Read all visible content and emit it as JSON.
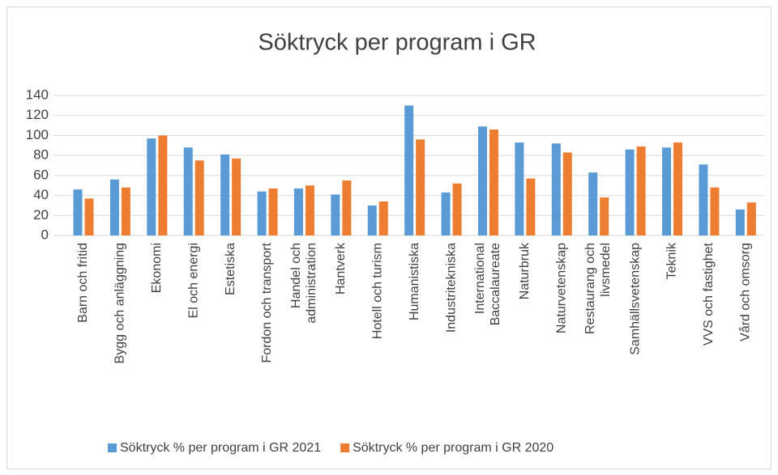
{
  "chart_data": {
    "type": "bar",
    "title": "Söktryck per program i GR",
    "categories": [
      "Barn och fritid",
      "Bygg och anläggning",
      "Ekonomi",
      "El och energi",
      "Estetiska",
      "Fordon och transport",
      "Handel och administration",
      "Hantverk",
      "Hotell och turism",
      "Humanistiska",
      "Industritekniska",
      "International Baccalaureate",
      "Naturbruk",
      "Naturvetenskap",
      "Restaurang och livsmedel",
      "Samhällsvetenskap",
      "Teknik",
      "VVS och fastighet",
      "Vård och omsorg"
    ],
    "series": [
      {
        "name": "Söktryck % per program i GR 2021",
        "color": "#5b9bd5",
        "values": [
          46,
          56,
          97,
          88,
          81,
          44,
          47,
          41,
          30,
          130,
          43,
          109,
          93,
          92,
          63,
          86,
          88,
          71,
          26
        ]
      },
      {
        "name": "Söktryck % per program i GR 2020",
        "color": "#ed7d31",
        "values": [
          37,
          48,
          100,
          75,
          77,
          47,
          50,
          55,
          34,
          96,
          52,
          106,
          57,
          83,
          38,
          89,
          93,
          48,
          33
        ]
      }
    ],
    "ylim": [
      0,
      140
    ],
    "yticks": [
      0,
      20,
      40,
      60,
      80,
      100,
      120,
      140
    ],
    "grid": true,
    "legend": "bottom"
  }
}
